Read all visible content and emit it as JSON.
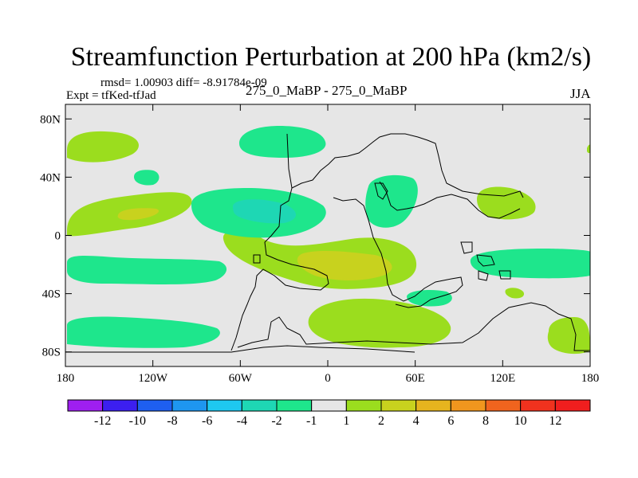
{
  "title": "Streamfunction Perturbation at 200 hPa (km2/s)",
  "stats": "rmsd= 1.00903 diff= -8.91784e-09",
  "experiment": "Expt = tfKed-tfJad",
  "difference_label": "275_0_MaBP - 275_0_MaBP",
  "season": "JJA",
  "map": {
    "projection": "cylindrical-equidistant",
    "lon_range": [
      -180,
      180
    ],
    "lat_range": [
      -90,
      90
    ],
    "lon_ticks": [
      {
        "value": -180,
        "label": "180"
      },
      {
        "value": -120,
        "label": "120W"
      },
      {
        "value": -60,
        "label": "60W"
      },
      {
        "value": 0,
        "label": "0"
      },
      {
        "value": 60,
        "label": "60E"
      },
      {
        "value": 120,
        "label": "120E"
      },
      {
        "value": 180,
        "label": "180"
      }
    ],
    "lat_ticks": [
      {
        "value": 80,
        "label": "80N"
      },
      {
        "value": 40,
        "label": "40N"
      },
      {
        "value": 0,
        "label": "0"
      },
      {
        "value": -40,
        "label": "40S"
      },
      {
        "value": -80,
        "label": "80S"
      }
    ]
  },
  "colorbar": {
    "colors": [
      "#9f1ff0",
      "#3c1ff0",
      "#1e5ff0",
      "#1e96f0",
      "#1ec8f0",
      "#1ed7b4",
      "#1ee68c",
      "#e6e6e6",
      "#9bdd1e",
      "#c8d21e",
      "#e6b41e",
      "#f0961e",
      "#f0641e",
      "#f0321e",
      "#f01e1e"
    ],
    "labels": [
      "-12",
      "-10",
      "-8",
      "-6",
      "-4",
      "-2",
      "-1",
      "1",
      "2",
      "4",
      "6",
      "8",
      "10",
      "12"
    ]
  }
}
